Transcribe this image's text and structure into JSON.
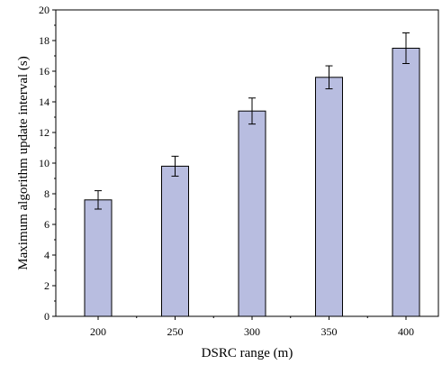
{
  "chart_data": {
    "type": "bar",
    "categories": [
      "200",
      "250",
      "300",
      "350",
      "400"
    ],
    "values": [
      7.6,
      9.8,
      13.4,
      15.6,
      17.5
    ],
    "error": [
      0.6,
      0.65,
      0.85,
      0.75,
      1.0
    ],
    "xlabel": "DSRC range (m)",
    "ylabel": "Maximum algorithm update interval (s)",
    "ylim": [
      0,
      20
    ],
    "yticks": [
      0,
      2,
      4,
      6,
      8,
      10,
      12,
      14,
      16,
      18,
      20
    ],
    "bar_color": "#b8bde0",
    "grid": false
  }
}
